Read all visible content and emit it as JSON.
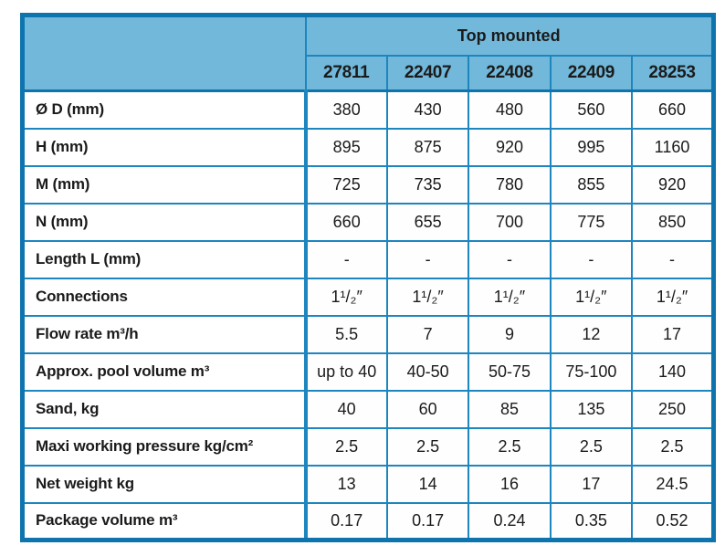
{
  "theme": {
    "header_fill": "#72b8da",
    "border_inner": "#1e86bf",
    "border_outer": "#0d74ae",
    "text_color": "#1b1b1b",
    "page_bg": "#ffffff"
  },
  "table": {
    "group_header": "Top mounted",
    "columns": [
      "27811",
      "22407",
      "22408",
      "22409",
      "28253"
    ],
    "rows": [
      {
        "label": "Ø D (mm)",
        "values": [
          "380",
          "430",
          "480",
          "560",
          "660"
        ]
      },
      {
        "label": "H (mm)",
        "values": [
          "895",
          "875",
          "920",
          "995",
          "1160"
        ]
      },
      {
        "label": "M (mm)",
        "values": [
          "725",
          "735",
          "780",
          "855",
          "920"
        ]
      },
      {
        "label": "N (mm)",
        "values": [
          "660",
          "655",
          "700",
          "775",
          "850"
        ]
      },
      {
        "label": "Length L (mm)",
        "values": [
          "-",
          "-",
          "-",
          "-",
          "-"
        ]
      },
      {
        "label": "Connections",
        "values": [
          "1¹/₂″",
          "1¹/₂″",
          "1¹/₂″",
          "1¹/₂″",
          "1¹/₂″"
        ]
      },
      {
        "label": "Flow rate m³/h",
        "values": [
          "5.5",
          "7",
          "9",
          "12",
          "17"
        ]
      },
      {
        "label": "Approx. pool volume m³",
        "values": [
          "up to 40",
          "40-50",
          "50-75",
          "75-100",
          "140"
        ]
      },
      {
        "label": "Sand, kg",
        "values": [
          "40",
          "60",
          "85",
          "135",
          "250"
        ]
      },
      {
        "label": "Maxi working pressure kg/cm²",
        "values": [
          "2.5",
          "2.5",
          "2.5",
          "2.5",
          "2.5"
        ]
      },
      {
        "label": "Net weight kg",
        "values": [
          "13",
          "14",
          "16",
          "17",
          "24.5"
        ]
      },
      {
        "label": "Package volume m³",
        "values": [
          "0.17",
          "0.17",
          "0.24",
          "0.35",
          "0.52"
        ]
      }
    ]
  }
}
